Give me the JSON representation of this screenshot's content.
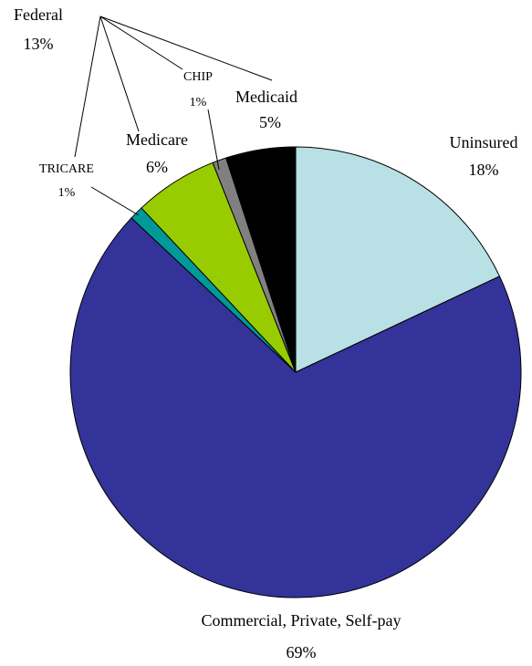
{
  "chart_data": {
    "type": "pie",
    "categories": [
      "Uninsured",
      "Commercial, Private, Self-pay",
      "TRICARE",
      "Medicare",
      "CHIP",
      "Medicaid"
    ],
    "values": [
      18,
      69,
      1,
      6,
      1,
      5
    ],
    "value_labels": [
      "18%",
      "69%",
      "1%",
      "6%",
      "1%",
      "5%"
    ],
    "colors": [
      "#b9e0e4",
      "#333399",
      "#009999",
      "#99cc00",
      "#808080",
      "#000000"
    ],
    "annotation": {
      "label": "Federal",
      "value_label": "13%"
    }
  }
}
